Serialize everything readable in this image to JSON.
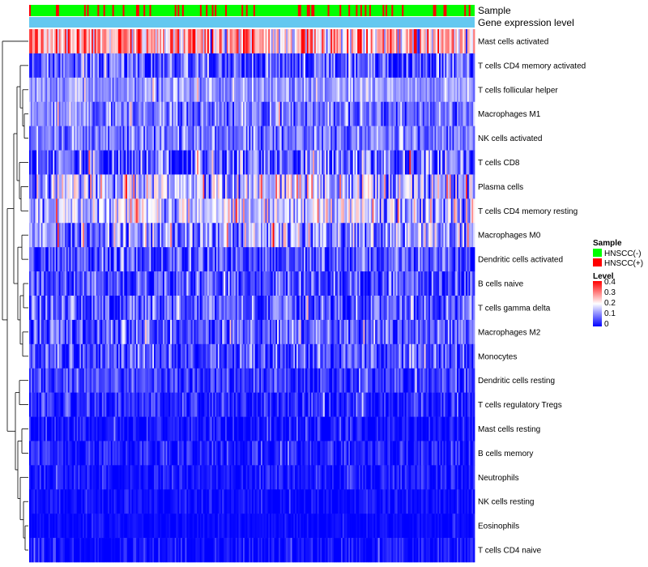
{
  "chart_data": {
    "type": "heatmap",
    "title": "",
    "annotations": [
      "Sample",
      "Gene expression level"
    ],
    "rows": [
      {
        "label": "Mast cells activated",
        "mean": 0.27,
        "spread": 0.16
      },
      {
        "label": "T cells CD4 memory activated",
        "mean": 0.06,
        "spread": 0.1
      },
      {
        "label": "T cells follicular helper",
        "mean": 0.12,
        "spread": 0.06
      },
      {
        "label": "Macrophages M1",
        "mean": 0.09,
        "spread": 0.08
      },
      {
        "label": "NK cells activated",
        "mean": 0.09,
        "spread": 0.07
      },
      {
        "label": "T cells CD8",
        "mean": 0.07,
        "spread": 0.12
      },
      {
        "label": "Plasma cells",
        "mean": 0.14,
        "spread": 0.14
      },
      {
        "label": "T cells CD4 memory resting",
        "mean": 0.15,
        "spread": 0.11
      },
      {
        "label": "Macrophages M0",
        "mean": 0.11,
        "spread": 0.12
      },
      {
        "label": "Dendritic cells activated",
        "mean": 0.06,
        "spread": 0.08
      },
      {
        "label": "B cells naive",
        "mean": 0.06,
        "spread": 0.08
      },
      {
        "label": "T cells gamma delta",
        "mean": 0.06,
        "spread": 0.09
      },
      {
        "label": "Macrophages M2",
        "mean": 0.07,
        "spread": 0.09
      },
      {
        "label": "Monocytes",
        "mean": 0.06,
        "spread": 0.08
      },
      {
        "label": "Dendritic cells resting",
        "mean": 0.04,
        "spread": 0.06
      },
      {
        "label": "T cells regulatory  Tregs",
        "mean": 0.03,
        "spread": 0.06
      },
      {
        "label": "Mast cells resting",
        "mean": 0.015,
        "spread": 0.05
      },
      {
        "label": "B cells memory",
        "mean": 0.02,
        "spread": 0.05
      },
      {
        "label": "Neutrophils",
        "mean": 0.015,
        "spread": 0.04
      },
      {
        "label": "NK cells resting",
        "mean": 0.01,
        "spread": 0.03
      },
      {
        "label": "Eosinophils",
        "mean": 0.005,
        "spread": 0.02
      },
      {
        "label": "T cells CD4 naive",
        "mean": 0.01,
        "spread": 0.04
      }
    ],
    "n_samples": 300,
    "positive_fraction": 0.15,
    "value_range": [
      0,
      0.4
    ],
    "colorscale": {
      "low": "#0000ff",
      "mid": "#ffffff",
      "high": "#ff0000",
      "mid_value": 0.2
    },
    "legend": {
      "position": "right",
      "sample_title": "Sample",
      "sample_groups": [
        {
          "label": "HNSCC(-)",
          "color": "#00ff00"
        },
        {
          "label": "HNSCC(+)",
          "color": "#ff0000"
        }
      ],
      "level_title": "Level",
      "level_ticks": [
        "0.4",
        "0.3",
        "0.2",
        "0.1",
        "0"
      ]
    },
    "gene_expression_color": "#64c8f0",
    "dendrogram": true
  }
}
